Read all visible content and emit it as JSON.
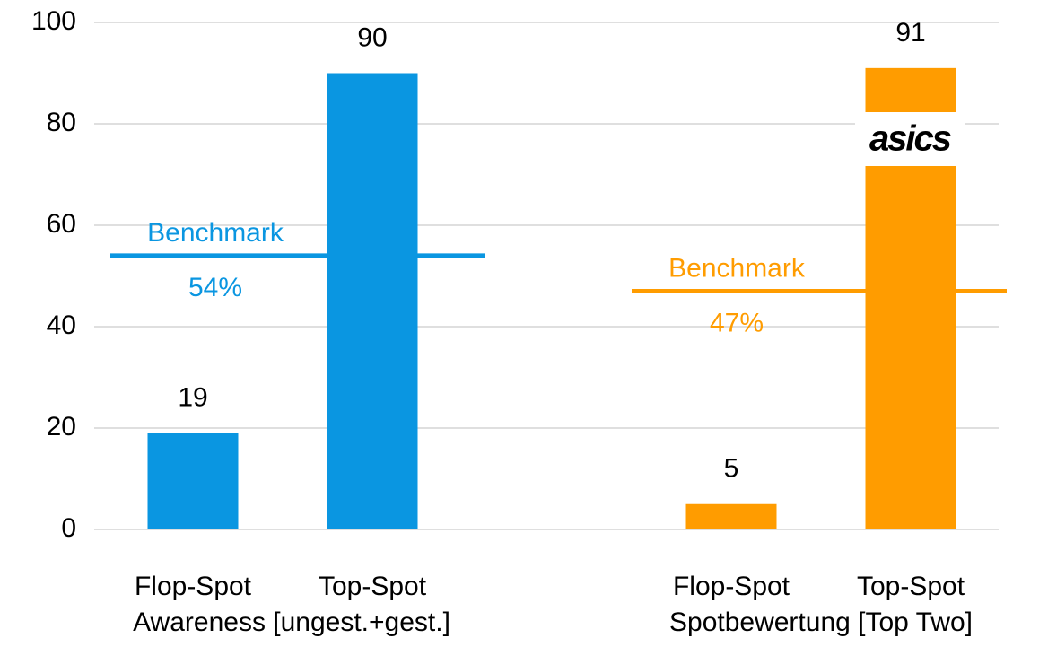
{
  "chart_data": {
    "type": "bar",
    "groups": [
      {
        "name": "Awareness [ungest.+gest.]",
        "color": "#0a96e1",
        "categories": [
          "Flop-Spot",
          "Top-Spot"
        ],
        "values": [
          19,
          90
        ],
        "benchmark": {
          "label": "Benchmark",
          "value": 54,
          "value_label": "54%"
        }
      },
      {
        "name": "Spotbewertung [Top Two]",
        "color": "#ff9c00",
        "categories": [
          "Flop-Spot",
          "Top-Spot"
        ],
        "values": [
          5,
          91
        ],
        "benchmark": {
          "label": "Benchmark",
          "value": 47,
          "value_label": "47%"
        }
      }
    ],
    "ylim": [
      0,
      100
    ],
    "yticks": [
      0,
      20,
      40,
      60,
      80,
      100
    ],
    "grid": true,
    "logo": "asics"
  }
}
